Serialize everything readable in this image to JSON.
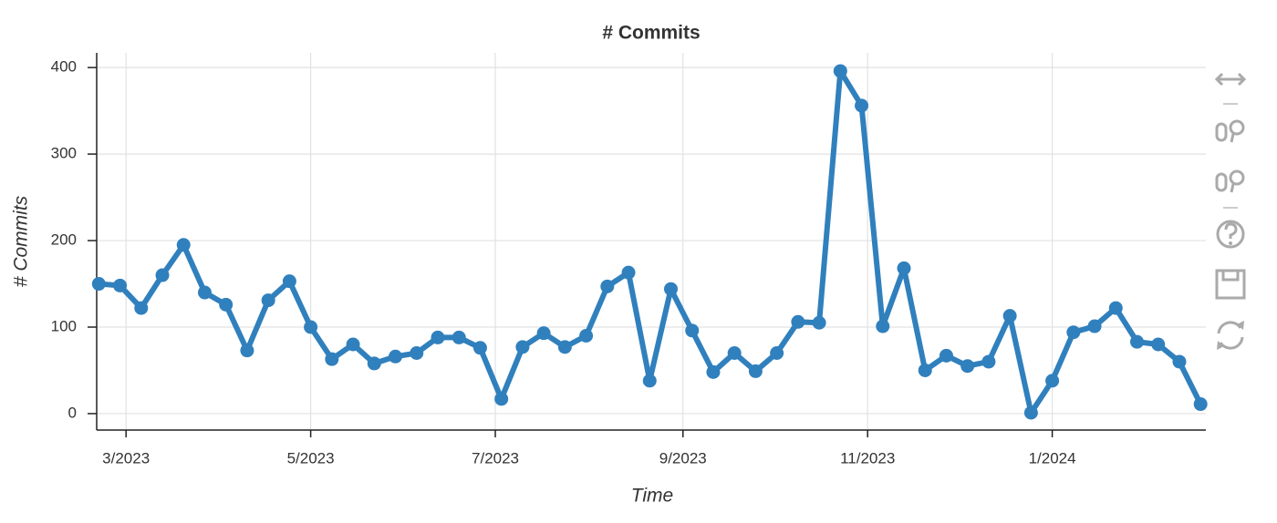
{
  "chart_data": {
    "type": "line",
    "title": "# Commits",
    "x_label": "Time",
    "y_label": "# Commits",
    "x": [
      0,
      1,
      2,
      3,
      4,
      5,
      6,
      7,
      8,
      9,
      10,
      11,
      12,
      13,
      14,
      15,
      16,
      17,
      18,
      19,
      20,
      21,
      22,
      23,
      24,
      25,
      26,
      27,
      28,
      29,
      30,
      31,
      32,
      33,
      34,
      35,
      36,
      37,
      38,
      39,
      40,
      41,
      42,
      43,
      44,
      45,
      46,
      47,
      48,
      49,
      50,
      51,
      52
    ],
    "series": [
      {
        "name": "# Commits",
        "color": "#3080bd",
        "values": [
          150,
          148,
          122,
          160,
          195,
          140,
          126,
          73,
          131,
          153,
          100,
          63,
          80,
          58,
          66,
          70,
          88,
          88,
          76,
          17,
          77,
          93,
          77,
          90,
          147,
          163,
          38,
          144,
          96,
          48,
          70,
          49,
          70,
          106,
          105,
          396,
          356,
          101,
          168,
          50,
          67,
          55,
          60,
          113,
          1,
          38,
          94,
          101,
          122,
          83,
          80,
          60,
          11
        ]
      }
    ],
    "xlim": [
      -0.1,
      52.25
    ],
    "xticks": [
      {
        "value": 1.2857,
        "label": "3/2023"
      },
      {
        "value": 10,
        "label": "5/2023"
      },
      {
        "value": 18.714,
        "label": "7/2023"
      },
      {
        "value": 27.571,
        "label": "9/2023"
      },
      {
        "value": 36.286,
        "label": "11/2023"
      },
      {
        "value": 45,
        "label": "1/2024"
      }
    ],
    "ylim": [
      -19,
      417
    ],
    "yticks": [
      0,
      100,
      200,
      300,
      400
    ],
    "grid": true
  }
}
